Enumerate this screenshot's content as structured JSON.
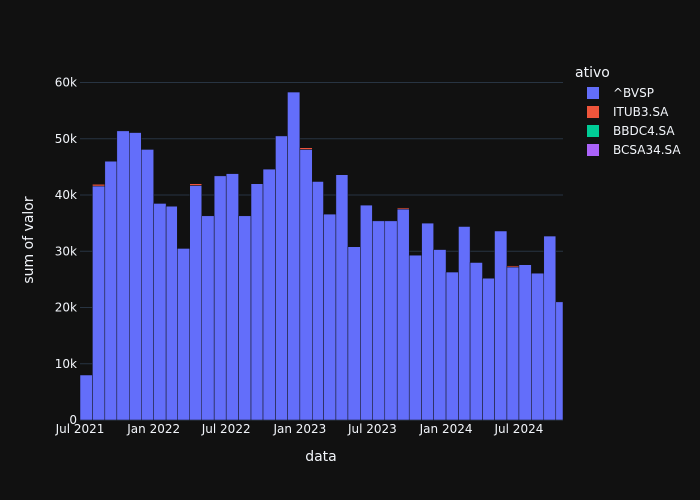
{
  "chart_data": {
    "type": "bar",
    "barmode": "stack",
    "xlabel": "data",
    "ylabel": "sum of valor",
    "ylim": [
      0,
      64000
    ],
    "y_ticks": [
      0,
      10000,
      20000,
      30000,
      40000,
      50000,
      60000
    ],
    "y_tick_labels": [
      "0",
      "10k",
      "20k",
      "30k",
      "40k",
      "50k",
      "60k"
    ],
    "x_tick_labels": [
      "Jul 2021",
      "Jan 2022",
      "Jul 2022",
      "Jan 2023",
      "Jul 2023",
      "Jan 2024",
      "Jul 2024"
    ],
    "x_tick_dates": [
      "2021-07-01",
      "2022-01-01",
      "2022-07-01",
      "2023-01-01",
      "2023-07-01",
      "2024-01-01",
      "2024-07-01"
    ],
    "x_range": [
      "2021-07-01",
      "2024-10-19"
    ],
    "grid": true,
    "legend": {
      "title": "ativo",
      "position": "right"
    },
    "x": [
      "2021-07-01",
      "2021-08-01",
      "2021-09-01",
      "2021-10-01",
      "2021-11-01",
      "2021-12-01",
      "2022-01-01",
      "2022-02-01",
      "2022-03-01",
      "2022-04-01",
      "2022-05-01",
      "2022-06-01",
      "2022-07-01",
      "2022-08-01",
      "2022-09-01",
      "2022-10-01",
      "2022-11-01",
      "2022-12-01",
      "2023-01-01",
      "2023-02-01",
      "2023-03-01",
      "2023-04-01",
      "2023-05-01",
      "2023-06-01",
      "2023-07-01",
      "2023-08-01",
      "2023-09-01",
      "2023-10-01",
      "2023-11-01",
      "2023-12-01",
      "2024-01-01",
      "2024-02-01",
      "2024-03-01",
      "2024-04-01",
      "2024-05-01",
      "2024-06-01",
      "2024-07-01",
      "2024-08-01",
      "2024-09-01",
      "2024-10-01"
    ],
    "series": [
      {
        "name": "^BVSP",
        "color": "#636efa",
        "values": [
          8000,
          41600,
          46000,
          51400,
          51100,
          48100,
          38500,
          38000,
          30500,
          41700,
          36300,
          43400,
          43800,
          36300,
          42000,
          44600,
          50500,
          58300,
          48100,
          42400,
          36600,
          43600,
          30800,
          38200,
          35400,
          35400,
          37500,
          29300,
          35000,
          30300,
          26300,
          34400,
          28000,
          25200,
          33600,
          27200,
          27600,
          26100,
          32700,
          21000
        ]
      },
      {
        "name": "ITUB3.SA",
        "color": "#ef553b",
        "values": [
          0,
          300,
          0,
          0,
          0,
          0,
          0,
          0,
          0,
          300,
          0,
          0,
          0,
          0,
          0,
          0,
          0,
          0,
          300,
          0,
          0,
          0,
          0,
          0,
          0,
          0,
          200,
          0,
          0,
          0,
          0,
          0,
          0,
          0,
          0,
          200,
          0,
          0,
          0,
          0
        ]
      },
      {
        "name": "BBDC4.SA",
        "color": "#00cc96",
        "values": [
          0,
          0,
          0,
          0,
          0,
          0,
          0,
          0,
          0,
          0,
          0,
          0,
          0,
          0,
          0,
          0,
          0,
          0,
          0,
          0,
          0,
          0,
          0,
          0,
          0,
          0,
          0,
          0,
          0,
          0,
          0,
          0,
          0,
          0,
          0,
          0,
          0,
          0,
          0,
          0
        ]
      },
      {
        "name": "BCSA34.SA",
        "color": "#ab63fa",
        "values": [
          0,
          0,
          0,
          0,
          0,
          0,
          0,
          0,
          0,
          0,
          0,
          0,
          0,
          0,
          0,
          0,
          0,
          0,
          0,
          0,
          0,
          0,
          0,
          0,
          0,
          0,
          0,
          0,
          0,
          0,
          0,
          0,
          0,
          0,
          0,
          0,
          0,
          0,
          0,
          0
        ]
      }
    ]
  },
  "colors": {
    "background": "#111111",
    "grid": "#283442",
    "text": "#f2f5fa",
    "bar_outline": "#111111"
  }
}
